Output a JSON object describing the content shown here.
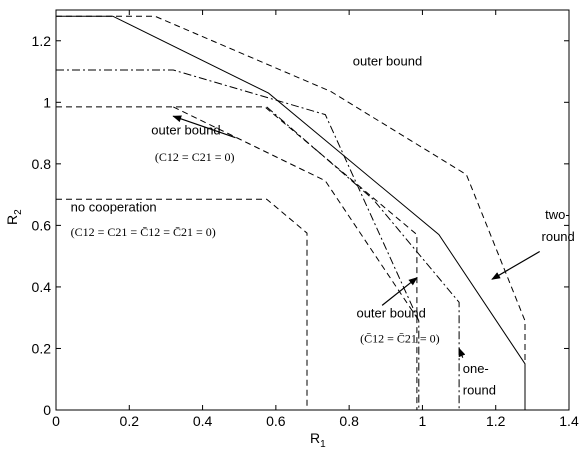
{
  "chart_data": {
    "type": "line",
    "xlabel": "R",
    "xlabel_sub": "1",
    "ylabel": "R",
    "ylabel_sub": "2",
    "xlim": [
      0,
      1.4
    ],
    "ylim": [
      0,
      1.3
    ],
    "xticks": [
      "0",
      "0.2",
      "0.4",
      "0.6",
      "0.8",
      "1",
      "1.2",
      "1.4"
    ],
    "xtick_values": [
      0,
      0.2,
      0.4,
      0.6,
      0.8,
      1.0,
      1.2,
      1.4
    ],
    "yticks": [
      "0",
      "0.2",
      "0.4",
      "0.6",
      "0.8",
      "1",
      "1.2"
    ],
    "ytick_values": [
      0,
      0.2,
      0.4,
      0.6,
      0.8,
      1.0,
      1.2
    ],
    "grid": false,
    "series": [
      {
        "style": "solid",
        "points": [
          [
            0,
            1.28
          ],
          [
            0.155,
            1.28
          ],
          [
            0.58,
            1.03
          ],
          [
            1.045,
            0.57
          ],
          [
            1.28,
            0.15
          ],
          [
            1.28,
            0
          ]
        ]
      },
      {
        "style": "dashed",
        "points": [
          [
            0,
            1.28
          ],
          [
            0.27,
            1.28
          ],
          [
            0.75,
            1.035
          ],
          [
            1.12,
            0.765
          ],
          [
            1.28,
            0.29
          ],
          [
            1.28,
            0
          ]
        ]
      },
      {
        "style": "dashdot",
        "points": [
          [
            0,
            1.105
          ],
          [
            0.32,
            1.105
          ],
          [
            0.735,
            0.96
          ],
          [
            0.99,
            0.29
          ],
          [
            0.99,
            0
          ]
        ]
      },
      {
        "style": "dashdot",
        "points": [
          [
            0.575,
            0.985
          ],
          [
            0.865,
            0.685
          ],
          [
            1.1,
            0.35
          ],
          [
            1.1,
            0
          ]
        ]
      },
      {
        "style": "dashed",
        "points": [
          [
            0,
            0.985
          ],
          [
            0.57,
            0.985
          ],
          [
            0.985,
            0.57
          ],
          [
            0.985,
            0
          ]
        ]
      },
      {
        "style": "dashed",
        "points": [
          [
            0.32,
            0.985
          ],
          [
            0.735,
            0.745
          ],
          [
            0.985,
            0.3
          ]
        ]
      },
      {
        "style": "dashed",
        "points": [
          [
            0,
            0.685
          ],
          [
            0.575,
            0.685
          ],
          [
            0.685,
            0.575
          ],
          [
            0.685,
            0
          ]
        ]
      }
    ],
    "annotations": [
      {
        "text": "outer bound",
        "x": 0.81,
        "y": 1.12
      },
      {
        "text": "outer bound",
        "x": 0.26,
        "y": 0.895
      },
      {
        "text": "(C12 = C21 = 0)",
        "x": 0.27,
        "y": 0.81
      },
      {
        "text": "no cooperation",
        "x": 0.04,
        "y": 0.645
      },
      {
        "text": "(C12 = C21 = C̄12 = C̄21 = 0)",
        "x": 0.04,
        "y": 0.565
      },
      {
        "text": "outer bound",
        "x": 0.82,
        "y": 0.3
      },
      {
        "text": "(C̄12 = C̄21 = 0)",
        "x": 0.83,
        "y": 0.22
      },
      {
        "text": "two-",
        "x": 1.335,
        "y": 0.62
      },
      {
        "text": "round",
        "x": 1.325,
        "y": 0.55
      },
      {
        "text": "one-",
        "x": 1.11,
        "y": 0.12
      },
      {
        "text": "round",
        "x": 1.11,
        "y": 0.05
      }
    ],
    "arrows": [
      {
        "from": [
          0.49,
          0.885
        ],
        "to": [
          0.32,
          0.955
        ]
      },
      {
        "from": [
          0.89,
          0.34
        ],
        "to": [
          0.985,
          0.43
        ]
      },
      {
        "from": [
          1.32,
          0.515
        ],
        "to": [
          1.19,
          0.425
        ]
      },
      {
        "from": [
          1.11,
          0.17
        ],
        "to": [
          1.1,
          0.2
        ]
      }
    ]
  }
}
